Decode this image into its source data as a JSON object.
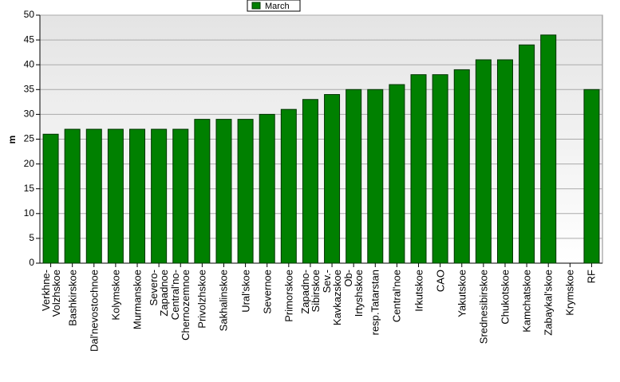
{
  "chart_data": {
    "type": "bar",
    "y_label": "m",
    "categories": [
      "Verkhne-\nVolzhskoe",
      "Bashkirskoe",
      "Dal'nevostochnoe",
      "Kolymskoe",
      "Murmanskoe",
      "Severo-\nZapadnoe",
      "Central'no-\nChernozemnoe",
      "Privolzhskoe",
      "Sakhalinskoe",
      "Ural'skoe",
      "Severnoe",
      "Primorskoe",
      "Zapadno-\nSibirskoe",
      "Sev.-\nKavkazskoe",
      "Ob-\nIrtyshskoe",
      "resp.Tatarstan",
      "Central'noe",
      "Irkutskoe",
      "CAO",
      "Yakutskoe",
      "Srednesibirskoe",
      "Chukotskoe",
      "Kamchatskoe",
      "Zabaykal'skoe",
      "Krymskoe",
      "RF"
    ],
    "series": [
      {
        "name": "March",
        "color": "#008000",
        "values": [
          26,
          27,
          27,
          27,
          27,
          27,
          27,
          29,
          29,
          29,
          30,
          31,
          33,
          34,
          35,
          35,
          36,
          38,
          38,
          39,
          41,
          41,
          44,
          46,
          null,
          35
        ]
      }
    ],
    "ylim": [
      0,
      50
    ],
    "yticks": [
      0,
      5,
      10,
      15,
      20,
      25,
      30,
      35,
      40,
      45,
      50
    ],
    "grid": true,
    "legend": "top"
  }
}
